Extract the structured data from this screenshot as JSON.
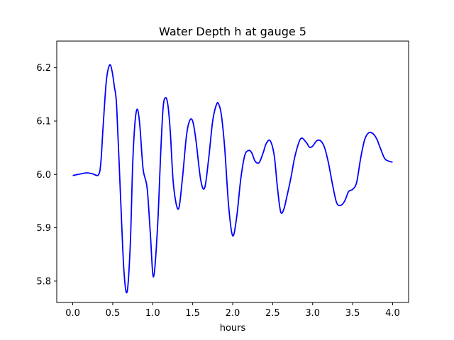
{
  "chart_data": {
    "type": "line",
    "title": "Water Depth h at gauge 5",
    "xlabel": "hours",
    "ylabel": "",
    "xlim": [
      -0.2,
      4.2
    ],
    "ylim": [
      5.76,
      6.25
    ],
    "x_ticks": [
      0.0,
      0.5,
      1.0,
      1.5,
      2.0,
      2.5,
      3.0,
      3.5,
      4.0
    ],
    "x_tick_labels": [
      "0.0",
      "0.5",
      "1.0",
      "1.5",
      "2.0",
      "2.5",
      "3.0",
      "3.5",
      "4.0"
    ],
    "y_ticks": [
      5.8,
      5.9,
      6.0,
      6.1,
      6.2
    ],
    "y_tick_labels": [
      "5.8",
      "5.9",
      "6.0",
      "6.1",
      "6.2"
    ],
    "grid": false,
    "series": [
      {
        "color": "#0000ff",
        "x": [
          0.0,
          0.1,
          0.18,
          0.25,
          0.32,
          0.35,
          0.38,
          0.42,
          0.46,
          0.49,
          0.52,
          0.55,
          0.6,
          0.64,
          0.68,
          0.72,
          0.75,
          0.78,
          0.81,
          0.84,
          0.88,
          0.93,
          0.97,
          1.01,
          1.06,
          1.1,
          1.13,
          1.16,
          1.19,
          1.22,
          1.26,
          1.32,
          1.37,
          1.42,
          1.46,
          1.5,
          1.54,
          1.6,
          1.65,
          1.7,
          1.75,
          1.8,
          1.83,
          1.86,
          1.9,
          1.95,
          2.0,
          2.05,
          2.1,
          2.15,
          2.2,
          2.24,
          2.28,
          2.33,
          2.38,
          2.42,
          2.47,
          2.52,
          2.56,
          2.6,
          2.64,
          2.68,
          2.73,
          2.78,
          2.85,
          2.92,
          2.96,
          3.0,
          3.05,
          3.1,
          3.15,
          3.2,
          3.25,
          3.3,
          3.35,
          3.4,
          3.45,
          3.5,
          3.55,
          3.6,
          3.65,
          3.7,
          3.75,
          3.8,
          3.85,
          3.9,
          3.95,
          4.0
        ],
        "y": [
          5.998,
          6.001,
          6.003,
          6.001,
          5.999,
          6.02,
          6.09,
          6.175,
          6.205,
          6.195,
          6.165,
          6.125,
          5.95,
          5.82,
          5.78,
          5.87,
          6.02,
          6.1,
          6.122,
          6.09,
          6.01,
          5.975,
          5.89,
          5.808,
          5.9,
          6.04,
          6.125,
          6.144,
          6.13,
          6.08,
          5.98,
          5.935,
          5.99,
          6.07,
          6.1,
          6.1,
          6.065,
          5.99,
          5.975,
          6.03,
          6.1,
          6.132,
          6.13,
          6.11,
          6.05,
          5.94,
          5.885,
          5.92,
          5.99,
          6.035,
          6.045,
          6.04,
          6.025,
          6.022,
          6.04,
          6.058,
          6.063,
          6.035,
          5.975,
          5.93,
          5.935,
          5.96,
          5.995,
          6.035,
          6.067,
          6.06,
          6.051,
          6.053,
          6.063,
          6.063,
          6.05,
          6.02,
          5.98,
          5.947,
          5.942,
          5.95,
          5.968,
          5.972,
          5.985,
          6.03,
          6.065,
          6.078,
          6.077,
          6.067,
          6.048,
          6.03,
          6.025,
          6.023
        ]
      }
    ]
  }
}
